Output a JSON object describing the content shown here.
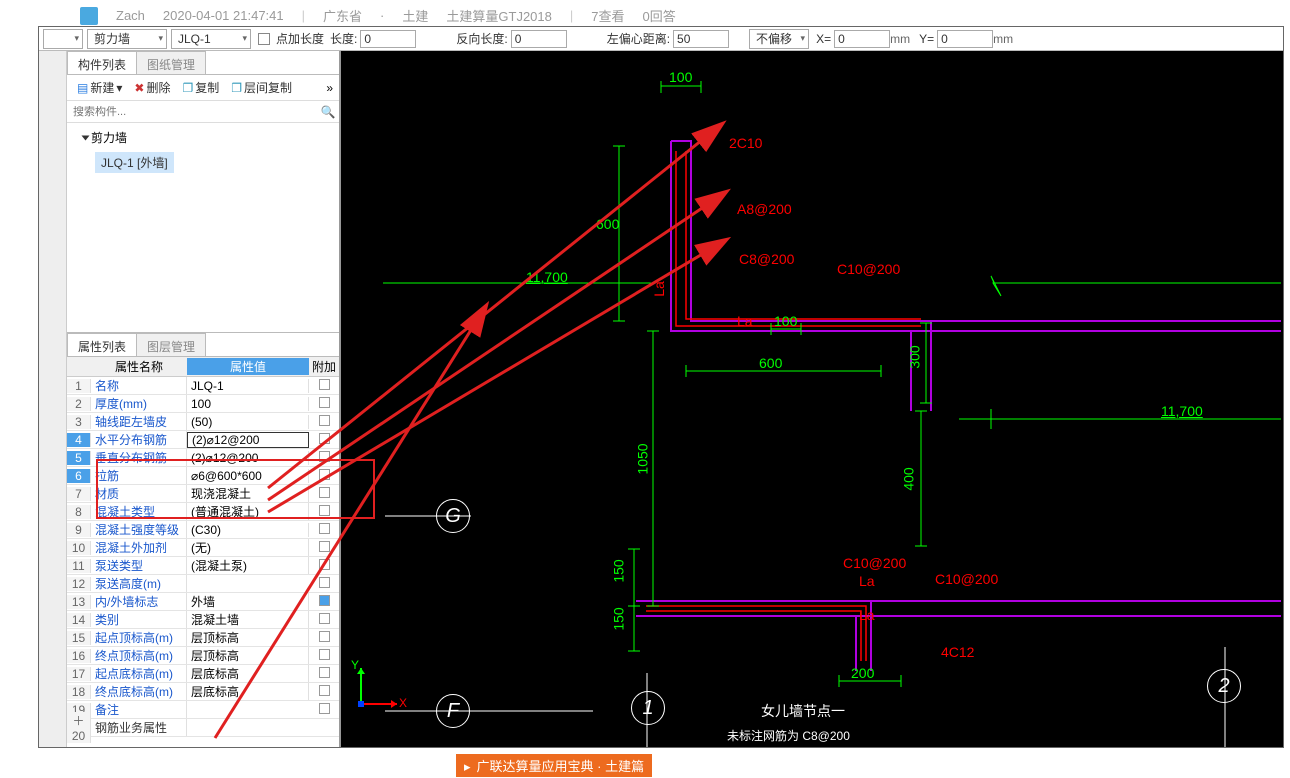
{
  "meta": {
    "user": "Zach",
    "time": "2020-04-01 21:47:41",
    "province": "广东省",
    "field": "土建",
    "product": "土建算量GTJ2018",
    "views": "7查看",
    "replies": "0回答"
  },
  "toolbar": {
    "combo1": "剪力墙",
    "combo2": "JLQ-1",
    "chk1_label": "点加长度",
    "len_label": "长度:",
    "len_val": "0",
    "rev_label": "反向长度:",
    "rev_val": "0",
    "ecc_label": "左偏心距离:",
    "ecc_val": "50",
    "offset_combo": "不偏移",
    "x_label": "X=",
    "x_val": "0",
    "mm": "mm",
    "y_label": "Y=",
    "y_val": "0"
  },
  "tabs": {
    "components": "构件列表",
    "drawings": "图纸管理",
    "properties": "属性列表",
    "layers": "图层管理"
  },
  "compToolbar": {
    "new": "新建",
    "delete": "删除",
    "copy": "复制",
    "layerCopy": "层间复制",
    "more": "»"
  },
  "search_placeholder": "搜索构件...",
  "tree": {
    "root": "剪力墙",
    "leaf": "JLQ-1 [外墙]"
  },
  "propHeader": {
    "name": "属性名称",
    "value": "属性值",
    "extra": "附加"
  },
  "props": [
    {
      "n": "1",
      "name": "名称",
      "val": "JLQ-1",
      "link": true
    },
    {
      "n": "2",
      "name": "厚度(mm)",
      "val": "100",
      "link": true
    },
    {
      "n": "3",
      "name": "轴线距左墙皮",
      "val": "(50)",
      "link": true
    },
    {
      "n": "4",
      "name": "水平分布钢筋",
      "val": "(2)⌀12@200",
      "link": true,
      "hl": true,
      "editing": true
    },
    {
      "n": "5",
      "name": "垂直分布钢筋",
      "val": "(2)⌀12@200",
      "link": true,
      "hl": true
    },
    {
      "n": "6",
      "name": "拉筋",
      "val": "⌀6@600*600",
      "link": true,
      "hl": true
    },
    {
      "n": "7",
      "name": "材质",
      "val": "现浇混凝土",
      "link": true
    },
    {
      "n": "8",
      "name": "混凝土类型",
      "val": "(普通混凝土)",
      "link": true
    },
    {
      "n": "9",
      "name": "混凝土强度等级",
      "val": "(C30)",
      "link": true
    },
    {
      "n": "10",
      "name": "混凝土外加剂",
      "val": "(无)",
      "link": true
    },
    {
      "n": "11",
      "name": "泵送类型",
      "val": "(混凝土泵)",
      "link": true
    },
    {
      "n": "12",
      "name": "泵送高度(m)",
      "val": "",
      "link": true
    },
    {
      "n": "13",
      "name": "内/外墙标志",
      "val": "外墙",
      "link": true,
      "checked": true
    },
    {
      "n": "14",
      "name": "类别",
      "val": "混凝土墙",
      "link": true
    },
    {
      "n": "15",
      "name": "起点顶标高(m)",
      "val": "层顶标高",
      "link": true
    },
    {
      "n": "16",
      "name": "终点顶标高(m)",
      "val": "层顶标高",
      "link": true
    },
    {
      "n": "17",
      "name": "起点底标高(m)",
      "val": "层底标高",
      "link": true
    },
    {
      "n": "18",
      "name": "终点底标高(m)",
      "val": "层底标高",
      "link": true
    },
    {
      "n": "19",
      "name": "备注",
      "val": "",
      "link": true
    },
    {
      "n": "20",
      "name": "钢筋业务属性",
      "val": "",
      "link": false,
      "exp": true
    }
  ],
  "drawing": {
    "dims": {
      "top_100": "100",
      "v_600": "600",
      "elev1": "11,700",
      "v_1050": "1050",
      "h_600": "600",
      "h_100": "100",
      "v_300": "300",
      "elev2": "11,700",
      "v_400": "400",
      "v_150a": "150",
      "v_150b": "150",
      "h_200": "200"
    },
    "rebar": {
      "r1": "2C10",
      "r2": "A8@200",
      "r3": "C8@200",
      "r4": "C10@200",
      "r5": "C10@200",
      "r6": "La",
      "r7": "La",
      "r8": "La",
      "r9": "C10@200",
      "r10": "4C12",
      "r11": "La"
    },
    "labels": {
      "title": "女儿墙节点一",
      "sub": "未标注网筋为 C8@200",
      "axisG": "G",
      "axisF": "F",
      "axis1": "1",
      "axis2": "2",
      "ucsX": "X",
      "ucsY": "Y"
    }
  },
  "footer": {
    "banner": "广联达算量应用宝典 · 土建篇"
  },
  "colors": {
    "dim": "#00ff00",
    "rebar": "#ff0000",
    "wall": "#b000e0",
    "axis": "#ffffff",
    "arrow": "#e02020",
    "hlrow": "#4aa0e8",
    "link": "#1957cc"
  }
}
